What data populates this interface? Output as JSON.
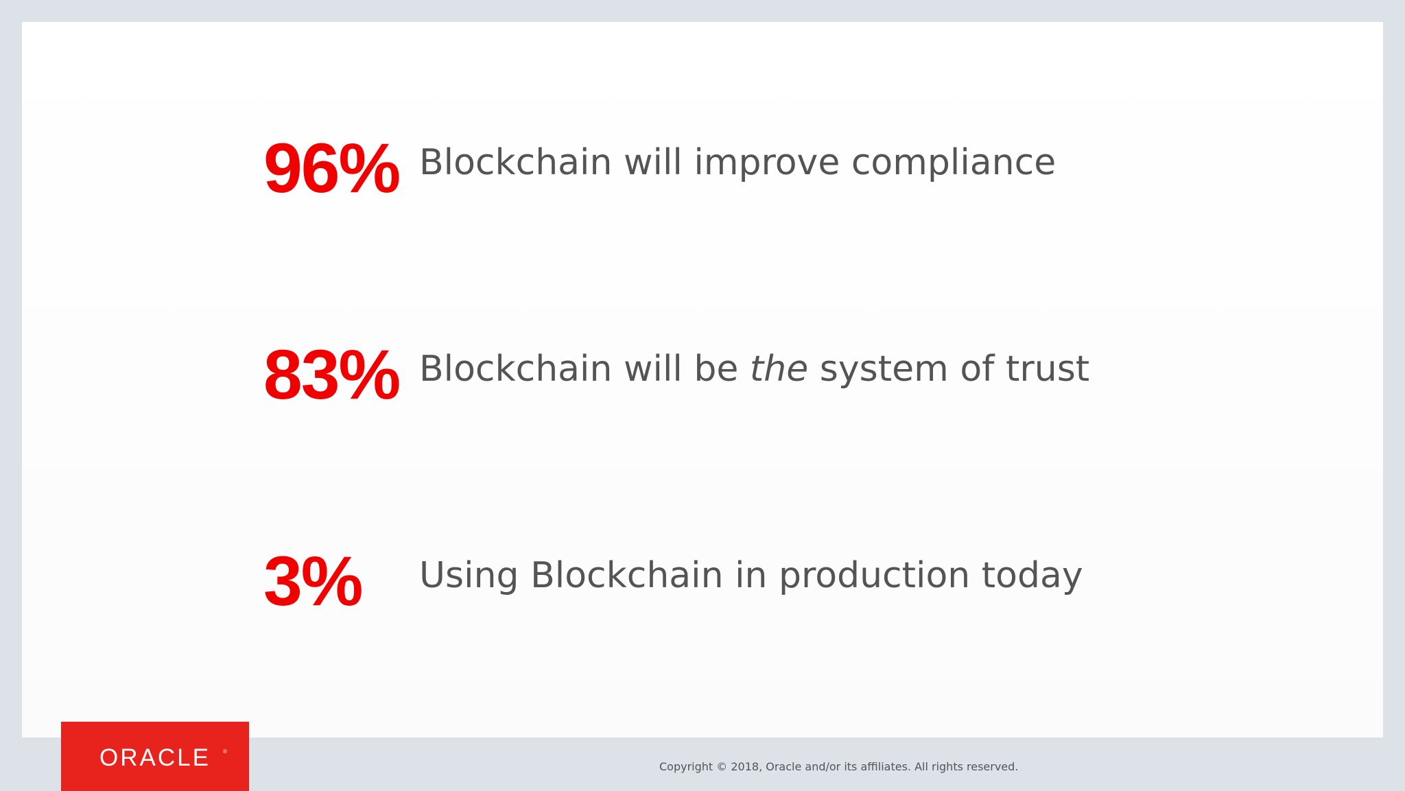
{
  "stats": [
    {
      "value": "96%",
      "label_before": "Blockchain will improve compliance",
      "label_emphasis": "",
      "label_after": ""
    },
    {
      "value": "83%",
      "label_before": "Blockchain will be ",
      "label_emphasis": "the",
      "label_after": " system of trust"
    },
    {
      "value": "3%",
      "label_before": "Using Blockchain in production today",
      "label_emphasis": "",
      "label_after": ""
    }
  ],
  "footer": {
    "logo_text": "ORACLE",
    "logo_mark": "®",
    "copyright": "Copyright © 2018, Oracle and/or its affiliates. All rights reserved."
  },
  "colors": {
    "stat_value": "#f20000",
    "text": "#545454",
    "logo_background": "#e8231d",
    "page_background": "#dde2e9"
  }
}
